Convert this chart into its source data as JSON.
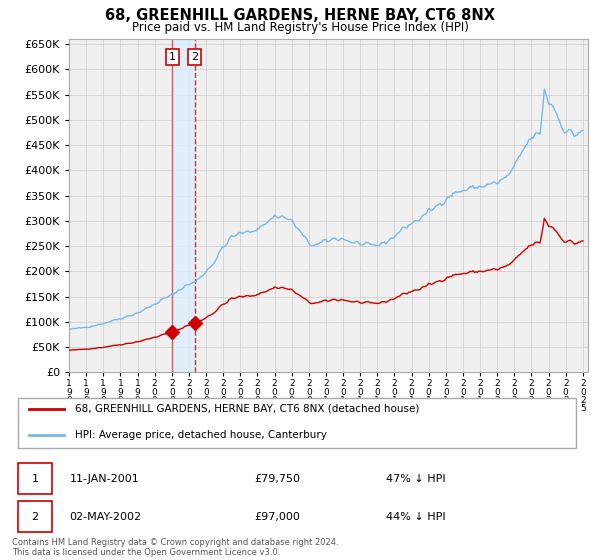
{
  "title": "68, GREENHILL GARDENS, HERNE BAY, CT6 8NX",
  "subtitle": "Price paid vs. HM Land Registry's House Price Index (HPI)",
  "hpi_label": "HPI: Average price, detached house, Canterbury",
  "property_label": "68, GREENHILL GARDENS, HERNE BAY, CT6 8NX (detached house)",
  "footnote": "Contains HM Land Registry data © Crown copyright and database right 2024.\nThis data is licensed under the Open Government Licence v3.0.",
  "transactions": [
    {
      "num": 1,
      "date": "11-JAN-2001",
      "price": 79750,
      "pct": "47% ↓ HPI",
      "x_year": 2001.04
    },
    {
      "num": 2,
      "date": "02-MAY-2002",
      "price": 97000,
      "pct": "44% ↓ HPI",
      "x_year": 2002.34
    }
  ],
  "ylim": [
    0,
    660000
  ],
  "yticks": [
    0,
    50000,
    100000,
    150000,
    200000,
    250000,
    300000,
    350000,
    400000,
    450000,
    500000,
    550000,
    600000,
    650000
  ],
  "xlim_start": 1995.0,
  "xlim_end": 2025.3,
  "hpi_color": "#7ab8e8",
  "property_color": "#cc0000",
  "vline1_color": "#cc0000",
  "vline2_color": "#cc0000",
  "shade_color": "#ddeeff",
  "grid_color": "#cccccc",
  "background_color": "#f0f0f0"
}
